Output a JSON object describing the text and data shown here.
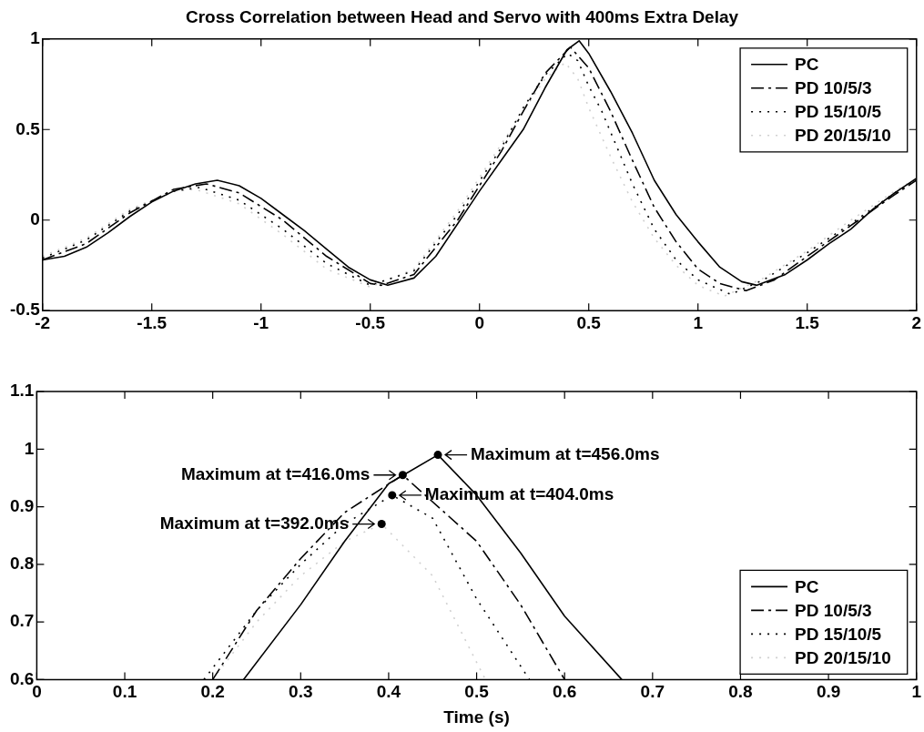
{
  "chart_data": [
    {
      "type": "line",
      "title": "Cross Correlation between Head and Servo with 400ms Extra Delay",
      "xlim": [
        -2,
        2
      ],
      "xticks": [
        -2,
        -1.5,
        -1,
        -0.5,
        0,
        0.5,
        1,
        1.5,
        2
      ],
      "ylim": [
        -0.5,
        1
      ],
      "yticks": [
        -0.5,
        0,
        0.5,
        1
      ],
      "legend": "top right",
      "series": [
        {
          "name": "PC",
          "color": "#000000",
          "line_style": "solid",
          "x": [
            -2,
            -1.9,
            -1.8,
            -1.7,
            -1.6,
            -1.5,
            -1.4,
            -1.3,
            -1.2,
            -1.1,
            -1.0,
            -0.9,
            -0.8,
            -0.7,
            -0.6,
            -0.5,
            -0.42,
            -0.3,
            -0.2,
            -0.1,
            0,
            0.1,
            0.2,
            0.3,
            0.4,
            0.456,
            0.5,
            0.6,
            0.7,
            0.8,
            0.9,
            1.0,
            1.1,
            1.2,
            1.27,
            1.4,
            1.5,
            1.6,
            1.7,
            1.8,
            1.9,
            2.0
          ],
          "values": [
            -0.22,
            -0.2,
            -0.15,
            -0.07,
            0.02,
            0.1,
            0.16,
            0.2,
            0.22,
            0.19,
            0.12,
            0.03,
            -0.06,
            -0.16,
            -0.26,
            -0.33,
            -0.36,
            -0.32,
            -0.2,
            -0.02,
            0.16,
            0.33,
            0.5,
            0.73,
            0.94,
            0.99,
            0.92,
            0.71,
            0.48,
            0.22,
            0.03,
            -0.12,
            -0.26,
            -0.34,
            -0.36,
            -0.3,
            -0.22,
            -0.13,
            -0.05,
            0.06,
            0.15,
            0.23
          ]
        },
        {
          "name": "PD 10/5/3",
          "color": "#000000",
          "line_style": "dashed",
          "x": [
            -2,
            -1.8,
            -1.6,
            -1.4,
            -1.25,
            -1.1,
            -0.9,
            -0.7,
            -0.5,
            -0.45,
            -0.3,
            -0.1,
            0.1,
            0.2,
            0.3,
            0.416,
            0.5,
            0.6,
            0.7,
            0.8,
            0.9,
            1.0,
            1.1,
            1.22,
            1.35,
            1.5,
            1.7,
            1.9,
            2
          ],
          "values": [
            -0.22,
            -0.13,
            0.04,
            0.17,
            0.2,
            0.15,
            0.0,
            -0.2,
            -0.35,
            -0.36,
            -0.3,
            0.0,
            0.38,
            0.6,
            0.81,
            0.955,
            0.84,
            0.6,
            0.33,
            0.07,
            -0.12,
            -0.27,
            -0.35,
            -0.39,
            -0.33,
            -0.2,
            -0.03,
            0.14,
            0.22
          ]
        },
        {
          "name": "PD 15/10/5",
          "color": "#000000",
          "line_style": "dotted",
          "x": [
            -2,
            -1.8,
            -1.6,
            -1.4,
            -1.28,
            -1.1,
            -0.9,
            -0.7,
            -0.5,
            -0.3,
            -0.1,
            0.1,
            0.2,
            0.3,
            0.404,
            0.45,
            0.5,
            0.56,
            0.7,
            0.8,
            0.9,
            1.0,
            1.15,
            1.3,
            1.5,
            1.7,
            1.9,
            2
          ],
          "values": [
            -0.21,
            -0.11,
            0.05,
            0.16,
            0.18,
            0.11,
            -0.05,
            -0.24,
            -0.36,
            -0.28,
            0.03,
            0.4,
            0.62,
            0.8,
            0.92,
            0.88,
            0.74,
            0.6,
            0.2,
            -0.05,
            -0.22,
            -0.33,
            -0.41,
            -0.33,
            -0.18,
            -0.02,
            0.15,
            0.22
          ]
        },
        {
          "name": "PD 20/15/10",
          "color": "#d0d0d0",
          "line_style": "dotted",
          "x": [
            -2,
            -1.8,
            -1.6,
            -1.4,
            -1.3,
            -1.1,
            -0.9,
            -0.7,
            -0.5,
            -0.3,
            -0.1,
            0.1,
            0.2,
            0.3,
            0.392,
            0.45,
            0.5,
            0.6,
            0.7,
            0.8,
            0.9,
            1.0,
            1.12,
            1.3,
            1.5,
            1.7,
            1.9,
            2
          ],
          "values": [
            -0.2,
            -0.1,
            0.06,
            0.16,
            0.17,
            0.09,
            -0.08,
            -0.27,
            -0.37,
            -0.27,
            0.05,
            0.42,
            0.6,
            0.78,
            0.87,
            0.78,
            0.62,
            0.35,
            0.1,
            -0.1,
            -0.25,
            -0.36,
            -0.42,
            -0.32,
            -0.17,
            0.0,
            0.16,
            0.23
          ]
        }
      ]
    },
    {
      "type": "line",
      "xlabel": "Time (s)",
      "xlim": [
        0,
        1
      ],
      "xticks": [
        0,
        0.1,
        0.2,
        0.3,
        0.4,
        0.5,
        0.6,
        0.7,
        0.8,
        0.9,
        1
      ],
      "ylim": [
        0.6,
        1.1
      ],
      "yticks": [
        0.6,
        0.7,
        0.8,
        0.9,
        1,
        1.1
      ],
      "legend": "bottom right",
      "annotations": [
        {
          "text": "Maximum at t=456.0ms",
          "x": 0.456,
          "y": 0.99
        },
        {
          "text": "Maximum at t=416.0ms",
          "x": 0.416,
          "y": 0.955
        },
        {
          "text": "Maximum at t=404.0ms",
          "x": 0.404,
          "y": 0.92
        },
        {
          "text": "Maximum at t=392.0ms",
          "x": 0.392,
          "y": 0.87
        }
      ],
      "series": [
        {
          "name": "PC",
          "color": "#000000",
          "line_style": "solid",
          "x": [
            0.235,
            0.3,
            0.35,
            0.4,
            0.456,
            0.5,
            0.55,
            0.6,
            0.665
          ],
          "values": [
            0.6,
            0.73,
            0.84,
            0.94,
            0.99,
            0.92,
            0.82,
            0.71,
            0.6
          ]
        },
        {
          "name": "PD 10/5/3",
          "color": "#000000",
          "line_style": "dashed",
          "x": [
            0.2,
            0.25,
            0.3,
            0.35,
            0.416,
            0.5,
            0.55,
            0.6
          ],
          "values": [
            0.6,
            0.72,
            0.81,
            0.89,
            0.955,
            0.84,
            0.73,
            0.6
          ]
        },
        {
          "name": "PD 15/10/5",
          "color": "#000000",
          "line_style": "dotted",
          "x": [
            0.19,
            0.25,
            0.3,
            0.35,
            0.404,
            0.45,
            0.5,
            0.56
          ],
          "values": [
            0.6,
            0.72,
            0.8,
            0.87,
            0.92,
            0.88,
            0.74,
            0.6
          ]
        },
        {
          "name": "PD 20/15/10",
          "color": "#d0d0d0",
          "line_style": "dotted",
          "x": [
            0.2,
            0.25,
            0.3,
            0.35,
            0.392,
            0.45,
            0.51
          ],
          "values": [
            0.6,
            0.7,
            0.78,
            0.84,
            0.87,
            0.78,
            0.6
          ]
        }
      ]
    }
  ]
}
